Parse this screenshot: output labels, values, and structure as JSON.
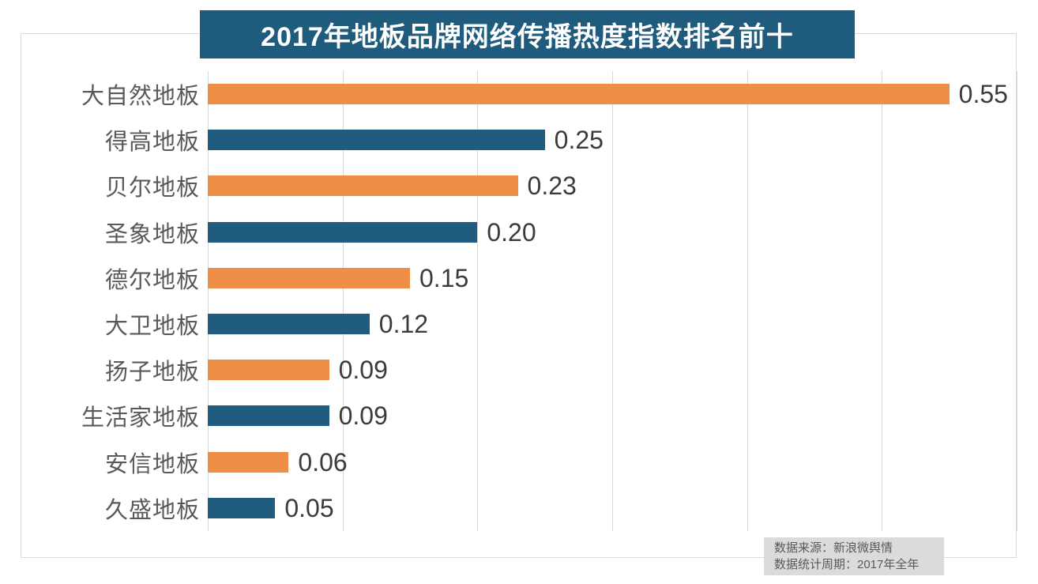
{
  "title": "2017年地板品牌网络传播热度指数排名前十",
  "footer": {
    "source_line": "数据来源：新浪微舆情",
    "period_line": "数据统计周期：2017年全年"
  },
  "colors": {
    "banner_bg": "#1F5B7C",
    "banner_text": "#FFFFFF",
    "bar_orange": "#ED8F47",
    "bar_blue": "#1F5C7F",
    "grid": "#D9D9D9",
    "frame_border": "#D9D9D9",
    "category_label": "#595959",
    "value_label": "#3B3B3B",
    "footer_bg": "#DBDBDB",
    "footer_text": "#595959"
  },
  "chart_data": {
    "type": "bar",
    "orientation": "horizontal",
    "title": "2017年地板品牌网络传播热度指数排名前十",
    "categories": [
      "大自然地板",
      "得高地板",
      "贝尔地板",
      "圣象地板",
      "德尔地板",
      "大卫地板",
      "扬子地板",
      "生活家地板",
      "安信地板",
      "久盛地板"
    ],
    "values": [
      0.55,
      0.25,
      0.23,
      0.2,
      0.15,
      0.12,
      0.09,
      0.09,
      0.06,
      0.05
    ],
    "value_labels": [
      "0.55",
      "0.25",
      "0.23",
      "0.20",
      "0.15",
      "0.12",
      "0.09",
      "0.09",
      "0.06",
      "0.05"
    ],
    "xlabel": "",
    "ylabel": "",
    "xlim": [
      0,
      0.6
    ],
    "x_ticks": [
      0,
      0.1,
      0.2,
      0.3,
      0.4,
      0.5,
      0.6
    ],
    "grid": "vertical-only",
    "legend": "none",
    "data_labels": "outside-end",
    "bar_color_pattern": [
      "#ED8F47",
      "#1F5C7F"
    ]
  }
}
